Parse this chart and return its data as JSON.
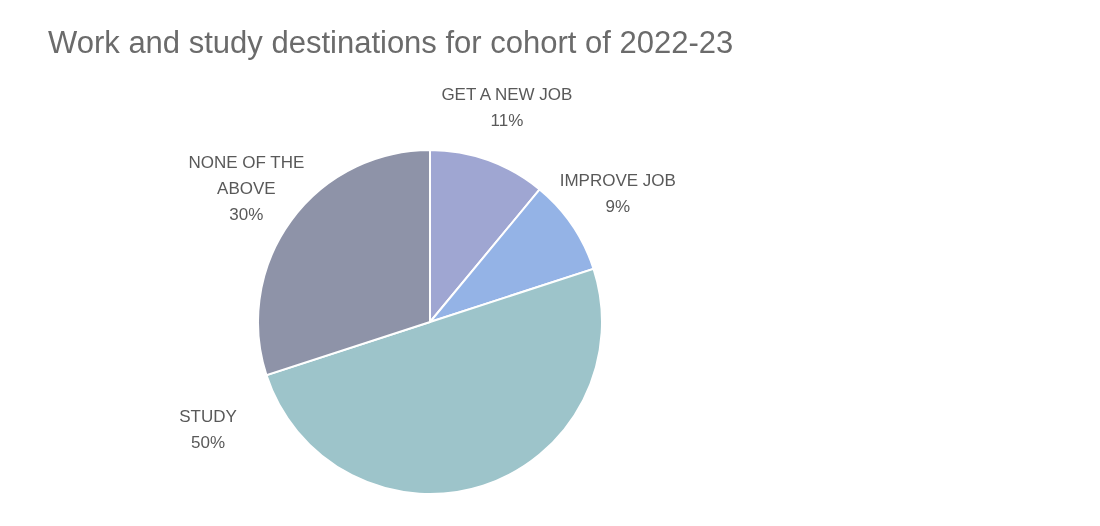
{
  "chart_data": {
    "type": "pie",
    "title": "Work and study destinations for cohort of 2022-23",
    "categories": [
      "GET A NEW JOB",
      "IMPROVE JOB",
      "STUDY",
      "NONE OF THE ABOVE"
    ],
    "values": [
      11,
      9,
      50,
      30
    ],
    "value_labels": [
      "11%",
      "9%",
      "50%",
      "30%"
    ],
    "colors": [
      "#9fa6d2",
      "#94b3e6",
      "#9dc4ca",
      "#8e93a8"
    ]
  }
}
